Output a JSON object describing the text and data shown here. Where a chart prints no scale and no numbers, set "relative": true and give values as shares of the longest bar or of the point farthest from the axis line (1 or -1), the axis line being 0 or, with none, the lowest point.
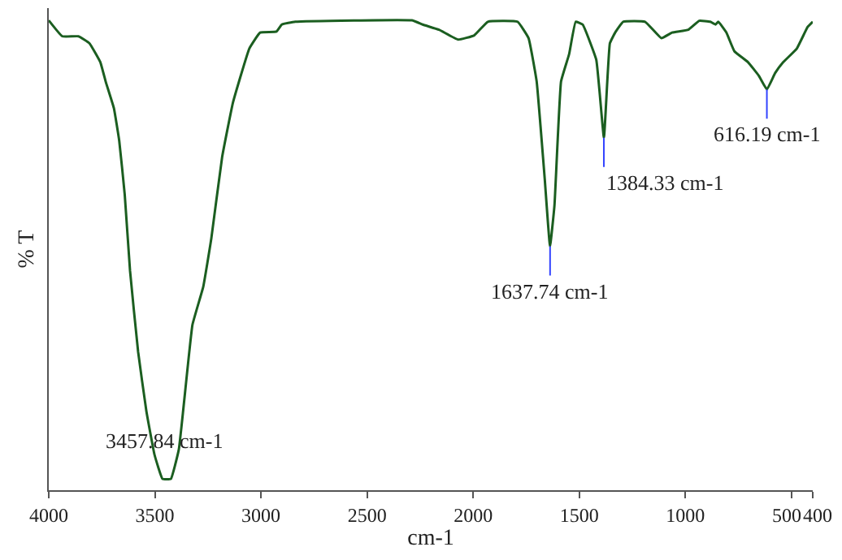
{
  "chart_data": {
    "type": "line",
    "xlabel": "cm-1",
    "ylabel": "% T",
    "relative": true,
    "color": "#1b5e20",
    "legend": false,
    "marker": "none",
    "xlim": [
      4000,
      400
    ],
    "xticks": [
      4000,
      3500,
      3000,
      2500,
      2000,
      1500,
      1000,
      500,
      400
    ],
    "x": [
      4000,
      3936,
      3860,
      3808,
      3757,
      3732,
      3693,
      3668,
      3642,
      3617,
      3579,
      3540,
      3502,
      3464,
      3425,
      3387,
      3323,
      3272,
      3234,
      3183,
      3132,
      3055,
      3004,
      2927,
      2902,
      2838,
      2289,
      2238,
      2161,
      2071,
      1995,
      1931,
      1791,
      1739,
      1701,
      1663,
      1638,
      1617,
      1586,
      1548,
      1517,
      1484,
      1420,
      1384,
      1356,
      1331,
      1293,
      1190,
      1113,
      1063,
      986,
      935,
      883,
      858,
      845,
      807,
      769,
      705,
      654,
      616,
      577,
      539,
      475,
      424,
      400
    ],
    "values": [
      1.0,
      0.966,
      0.966,
      0.951,
      0.911,
      0.87,
      0.813,
      0.744,
      0.629,
      0.467,
      0.295,
      0.168,
      0.076,
      0.024,
      0.024,
      0.087,
      0.352,
      0.433,
      0.536,
      0.709,
      0.825,
      0.94,
      0.974,
      0.976,
      0.991,
      0.997,
      1.0,
      0.991,
      0.98,
      0.959,
      0.968,
      0.997,
      0.997,
      0.962,
      0.87,
      0.663,
      0.519,
      0.606,
      0.87,
      0.928,
      0.997,
      0.991,
      0.916,
      0.75,
      0.951,
      0.974,
      0.997,
      0.997,
      0.962,
      0.974,
      0.98,
      0.999,
      0.997,
      0.991,
      0.997,
      0.974,
      0.934,
      0.911,
      0.882,
      0.853,
      0.888,
      0.911,
      0.94,
      0.986,
      0.997
    ],
    "annotations": [
      {
        "text": "3457.84 cm-1",
        "x": 3457.84,
        "y": 0.024
      },
      {
        "text": "1637.74 cm-1",
        "x": 1637.74,
        "y": 0.519
      },
      {
        "text": "1384.33 cm-1",
        "x": 1384.33,
        "y": 0.75
      },
      {
        "text": "616.19 cm-1",
        "x": 616.19,
        "y": 0.853
      }
    ]
  }
}
